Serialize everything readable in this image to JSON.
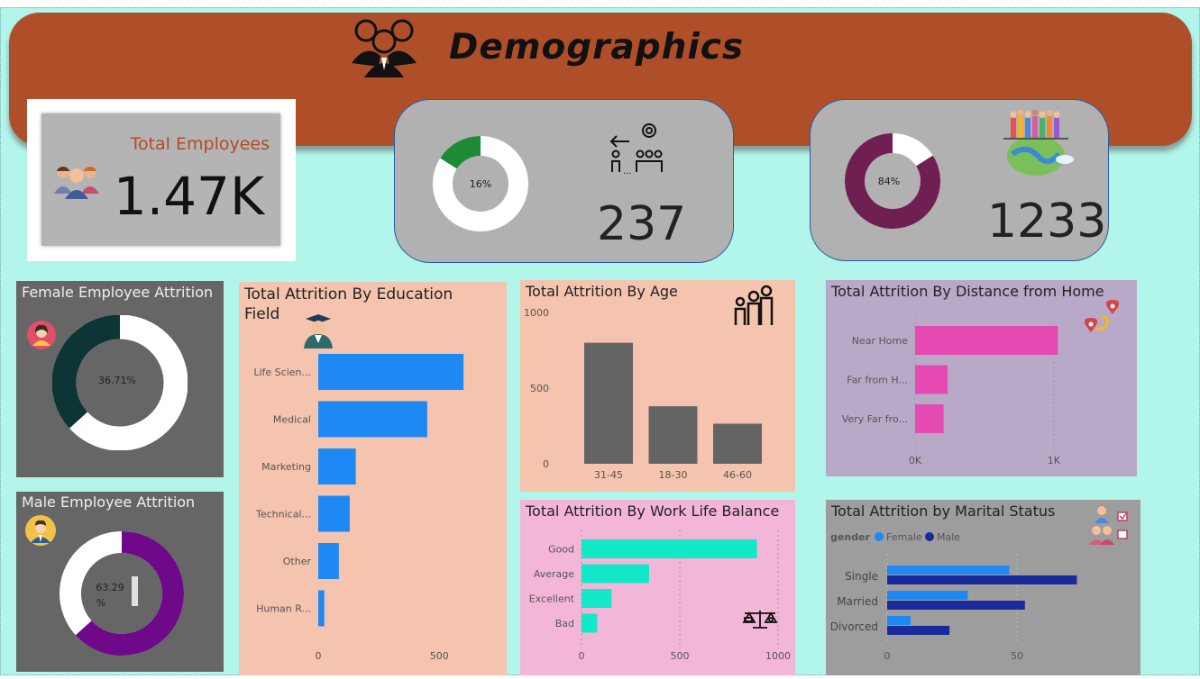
{
  "header": {
    "title": "Demographics"
  },
  "kpis": {
    "total_employees_label": "Total Employees",
    "total_employees_value": "1.47K",
    "attrition_count": "237",
    "attrition_pct_label": "16%",
    "active_count": "1233",
    "active_pct_label": "84%"
  },
  "colors": {
    "banner": "#af4f2a",
    "background": "#b2f5ea",
    "blue": "#1e88f5",
    "pink": "#e54ab2",
    "teal": "#13e8c8",
    "dark_gray": "#646464",
    "purple": "#6e0a8a",
    "maroon": "#701f52",
    "green": "#1e8a35"
  },
  "chart_data": [
    {
      "id": "female",
      "type": "pie",
      "title": "Female Employee Attrition",
      "center_label": "36.71%",
      "values": [
        36.71,
        63.29
      ]
    },
    {
      "id": "male",
      "type": "pie",
      "title": "Male Employee Attrition",
      "center_label": "63.29 %",
      "values": [
        63.29,
        36.71
      ]
    },
    {
      "id": "education",
      "type": "bar",
      "orientation": "horizontal",
      "title": "Total Attrition By Education Field",
      "categories": [
        "Life Scien...",
        "Medical",
        "Marketing",
        "Technical...",
        "Other",
        "Human R..."
      ],
      "values": [
        600,
        450,
        155,
        130,
        85,
        25
      ],
      "xlim": [
        0,
        700
      ],
      "ticks": [
        "0",
        "500"
      ]
    },
    {
      "id": "age",
      "type": "bar",
      "title": "Total Attrition By Age",
      "categories": [
        "31-45",
        "18-30",
        "46-60"
      ],
      "values": [
        800,
        380,
        265
      ],
      "ylim": [
        0,
        1000
      ],
      "ticks": [
        "0",
        "500",
        "1000"
      ]
    },
    {
      "id": "distance",
      "type": "bar",
      "orientation": "horizontal",
      "title": "Total Attrition By Distance from Home",
      "categories": [
        "Near Home",
        "Far from H...",
        "Very Far fro..."
      ],
      "values": [
        1030,
        235,
        205
      ],
      "xlim": [
        0,
        1300
      ],
      "ticks": [
        "0K",
        "1K"
      ]
    },
    {
      "id": "worklife",
      "type": "bar",
      "orientation": "horizontal",
      "title": "Total Attrition By Work Life Balance",
      "categories": [
        "Good",
        "Average",
        "Excellent",
        "Bad"
      ],
      "values": [
        893,
        344,
        153,
        80
      ],
      "xlim": [
        0,
        1000
      ],
      "ticks": [
        "0",
        "500",
        "1000"
      ]
    },
    {
      "id": "marital",
      "type": "bar",
      "orientation": "horizontal",
      "title": "Total Attrition by Marital Status",
      "legend_title": "gender",
      "categories": [
        "Single",
        "Married",
        "Divorced"
      ],
      "series": [
        {
          "name": "Female",
          "values": [
            47,
            31,
            9
          ]
        },
        {
          "name": "Male",
          "values": [
            73,
            53,
            24
          ]
        }
      ],
      "xlim": [
        0,
        85
      ],
      "ticks": [
        "0",
        "50"
      ]
    }
  ]
}
